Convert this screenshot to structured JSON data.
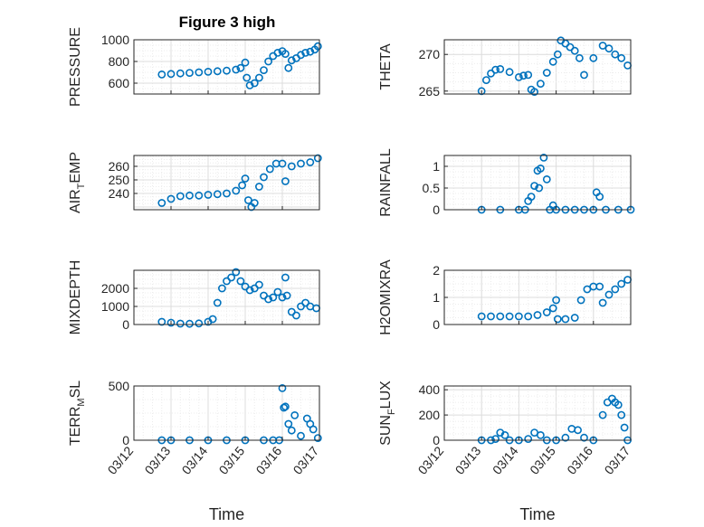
{
  "figure": {
    "title": "Figure 3 high",
    "marker_color": "#0072BD"
  },
  "x_tick_labels": [
    "03/12",
    "03/13",
    "03/14",
    "03/15",
    "03/16",
    "03/17"
  ],
  "chart_data": [
    {
      "type": "scatter",
      "name": "pressure",
      "ylabel": "PRESSURE",
      "ylabel_sub": "",
      "x_label": "",
      "ylim": [
        500,
        1000
      ],
      "yticks": [
        600,
        800,
        1000
      ],
      "x": [
        "03/12 18:00",
        "03/13 00:00",
        "03/13 06:00",
        "03/13 12:00",
        "03/13 18:00",
        "03/14 00:00",
        "03/14 06:00",
        "03/14 12:00",
        "03/14 18:00",
        "03/14 21:00",
        "03/15 00:00",
        "03/15 01:00",
        "03/15 03:00",
        "03/15 06:00",
        "03/15 09:00",
        "03/15 12:00",
        "03/15 15:00",
        "03/15 18:00",
        "03/15 21:00",
        "03/16 00:00",
        "03/16 02:00",
        "03/16 04:00",
        "03/16 06:00",
        "03/16 09:00",
        "03/16 12:00",
        "03/16 15:00",
        "03/16 18:00",
        "03/16 21:00",
        "03/16 23:00"
      ],
      "y": [
        680,
        685,
        690,
        695,
        700,
        705,
        710,
        715,
        725,
        740,
        790,
        650,
        580,
        600,
        650,
        720,
        800,
        850,
        880,
        895,
        870,
        740,
        810,
        830,
        860,
        880,
        890,
        910,
        940
      ]
    },
    {
      "type": "scatter",
      "name": "theta",
      "ylabel": "THETA",
      "ylabel_sub": "",
      "x_label": "",
      "ylim": [
        264.6,
        272
      ],
      "yticks": [
        265,
        270
      ],
      "x": [
        "03/13 00:00",
        "03/13 03:00",
        "03/13 06:00",
        "03/13 09:00",
        "03/13 12:00",
        "03/13 18:00",
        "03/14 00:00",
        "03/14 03:00",
        "03/14 06:00",
        "03/14 08:00",
        "03/14 10:00",
        "03/14 14:00",
        "03/14 18:00",
        "03/14 22:00",
        "03/15 01:00",
        "03/15 03:00",
        "03/15 06:00",
        "03/15 09:00",
        "03/15 12:00",
        "03/15 15:00",
        "03/15 18:00",
        "03/16 00:00",
        "03/16 06:00",
        "03/16 10:00",
        "03/16 14:00",
        "03/16 18:00",
        "03/16 22:00"
      ],
      "y": [
        265,
        266.5,
        267.4,
        267.9,
        268,
        267.6,
        266.9,
        267.1,
        267.2,
        265.2,
        264.9,
        266,
        267.5,
        269,
        270,
        271.9,
        271.5,
        271,
        270.5,
        269.5,
        267.2,
        269.5,
        271.2,
        270.8,
        270,
        269.5,
        268.5
      ]
    },
    {
      "type": "scatter",
      "name": "air_temp",
      "ylabel": "AIR",
      "ylabel_sub": "T",
      "ylabel_rest": "EMP",
      "x_label": "",
      "ylim": [
        228,
        268
      ],
      "yticks": [
        240,
        250,
        260
      ],
      "x": [
        "03/12 18:00",
        "03/13 00:00",
        "03/13 06:00",
        "03/13 12:00",
        "03/13 18:00",
        "03/14 00:00",
        "03/14 06:00",
        "03/14 12:00",
        "03/14 18:00",
        "03/14 22:00",
        "03/15 00:00",
        "03/15 02:00",
        "03/15 04:00",
        "03/15 06:00",
        "03/15 09:00",
        "03/15 12:00",
        "03/15 16:00",
        "03/15 20:00",
        "03/16 00:00",
        "03/16 02:00",
        "03/16 06:00",
        "03/16 12:00",
        "03/16 18:00",
        "03/16 23:00"
      ],
      "y": [
        233,
        236,
        238,
        238.5,
        238.5,
        239,
        239.5,
        240,
        242,
        246,
        251,
        235,
        230,
        233,
        245,
        252,
        258,
        262,
        262,
        249,
        260,
        262,
        263,
        266
      ]
    },
    {
      "type": "scatter",
      "name": "rainfall",
      "ylabel": "RAINFALL",
      "ylabel_sub": "",
      "x_label": "",
      "ylim": [
        0,
        1.25
      ],
      "yticks": [
        0,
        0.5,
        1
      ],
      "x": [
        "03/13 00:00",
        "03/13 12:00",
        "03/14 00:00",
        "03/14 04:00",
        "03/14 06:00",
        "03/14 08:00",
        "03/14 10:00",
        "03/14 12:00",
        "03/14 13:00",
        "03/14 14:00",
        "03/14 16:00",
        "03/14 18:00",
        "03/14 20:00",
        "03/14 22:00",
        "03/15 00:00",
        "03/15 06:00",
        "03/15 12:00",
        "03/15 18:00",
        "03/16 00:00",
        "03/16 02:00",
        "03/16 04:00",
        "03/16 08:00",
        "03/16 16:00",
        "03/17 00:00"
      ],
      "y": [
        0,
        0,
        0,
        0,
        0.2,
        0.3,
        0.55,
        0.9,
        0.5,
        0.95,
        1.2,
        0.7,
        0,
        0.1,
        0,
        0,
        0,
        0,
        0,
        0.4,
        0.3,
        0,
        0,
        0
      ]
    },
    {
      "type": "scatter",
      "name": "mixdepth",
      "ylabel": "MIXDEPTH",
      "ylabel_sub": "",
      "x_label": "",
      "ylim": [
        0,
        3000
      ],
      "yticks": [
        0,
        1000,
        2000
      ],
      "x": [
        "03/12 18:00",
        "03/13 00:00",
        "03/13 06:00",
        "03/13 12:00",
        "03/13 18:00",
        "03/14 00:00",
        "03/14 03:00",
        "03/14 06:00",
        "03/14 09:00",
        "03/14 12:00",
        "03/14 15:00",
        "03/14 18:00",
        "03/14 21:00",
        "03/15 00:00",
        "03/15 03:00",
        "03/15 06:00",
        "03/15 09:00",
        "03/15 12:00",
        "03/15 15:00",
        "03/15 18:00",
        "03/15 21:00",
        "03/16 00:00",
        "03/16 02:00",
        "03/16 03:00",
        "03/16 06:00",
        "03/16 09:00",
        "03/16 12:00",
        "03/16 15:00",
        "03/16 18:00",
        "03/16 22:00"
      ],
      "y": [
        150,
        100,
        50,
        40,
        60,
        150,
        300,
        1200,
        2000,
        2400,
        2600,
        2900,
        2400,
        2100,
        1900,
        2000,
        2200,
        1600,
        1400,
        1500,
        1800,
        1500,
        2600,
        1600,
        700,
        500,
        1000,
        1200,
        1000,
        900
      ]
    },
    {
      "type": "scatter",
      "name": "h2omixra",
      "ylabel": "H2OMIXRA",
      "ylabel_sub": "",
      "x_label": "",
      "ylim": [
        0,
        2
      ],
      "yticks": [
        0,
        1,
        2
      ],
      "x": [
        "03/13 00:00",
        "03/13 06:00",
        "03/13 12:00",
        "03/13 18:00",
        "03/14 00:00",
        "03/14 06:00",
        "03/14 12:00",
        "03/14 18:00",
        "03/14 22:00",
        "03/15 00:00",
        "03/15 01:00",
        "03/15 06:00",
        "03/15 12:00",
        "03/15 16:00",
        "03/15 20:00",
        "03/16 00:00",
        "03/16 04:00",
        "03/16 06:00",
        "03/16 10:00",
        "03/16 14:00",
        "03/16 18:00",
        "03/16 22:00"
      ],
      "y": [
        0.3,
        0.3,
        0.3,
        0.3,
        0.3,
        0.3,
        0.35,
        0.45,
        0.6,
        0.9,
        0.2,
        0.2,
        0.25,
        0.9,
        1.3,
        1.4,
        1.4,
        0.8,
        1.1,
        1.3,
        1.5,
        1.65
      ]
    },
    {
      "type": "scatter",
      "name": "terr_msl",
      "ylabel": "TERR",
      "ylabel_sub": "M",
      "ylabel_rest": "SL",
      "x_label": "Time",
      "ylim": [
        0,
        500
      ],
      "yticks": [
        0,
        500
      ],
      "x": [
        "03/12 18:00",
        "03/13 00:00",
        "03/13 12:00",
        "03/14 00:00",
        "03/14 12:00",
        "03/15 00:00",
        "03/15 12:00",
        "03/15 18:00",
        "03/15 22:00",
        "03/16 00:00",
        "03/16 01:00",
        "03/16 02:00",
        "03/16 04:00",
        "03/16 06:00",
        "03/16 08:00",
        "03/16 12:00",
        "03/16 16:00",
        "03/16 18:00",
        "03/16 20:00",
        "03/16 23:00"
      ],
      "y": [
        0,
        0,
        0,
        0,
        0,
        0,
        0,
        0,
        0,
        480,
        300,
        310,
        150,
        90,
        230,
        40,
        200,
        150,
        100,
        20
      ]
    },
    {
      "type": "scatter",
      "name": "sun_flux",
      "ylabel": "SUN",
      "ylabel_sub": "F",
      "ylabel_rest": "LUX",
      "x_label": "Time",
      "ylim": [
        0,
        430
      ],
      "yticks": [
        0,
        200,
        400
      ],
      "x": [
        "03/13 00:00",
        "03/13 06:00",
        "03/13 09:00",
        "03/13 12:00",
        "03/13 15:00",
        "03/13 18:00",
        "03/14 00:00",
        "03/14 06:00",
        "03/14 10:00",
        "03/14 14:00",
        "03/14 18:00",
        "03/15 00:00",
        "03/15 06:00",
        "03/15 10:00",
        "03/15 14:00",
        "03/15 18:00",
        "03/16 00:00",
        "03/16 06:00",
        "03/16 09:00",
        "03/16 12:00",
        "03/16 14:00",
        "03/16 16:00",
        "03/16 18:00",
        "03/16 20:00",
        "03/16 22:00"
      ],
      "y": [
        0,
        0,
        10,
        60,
        40,
        0,
        0,
        10,
        60,
        40,
        0,
        0,
        20,
        90,
        80,
        20,
        0,
        200,
        300,
        330,
        300,
        280,
        200,
        100,
        0
      ]
    }
  ]
}
